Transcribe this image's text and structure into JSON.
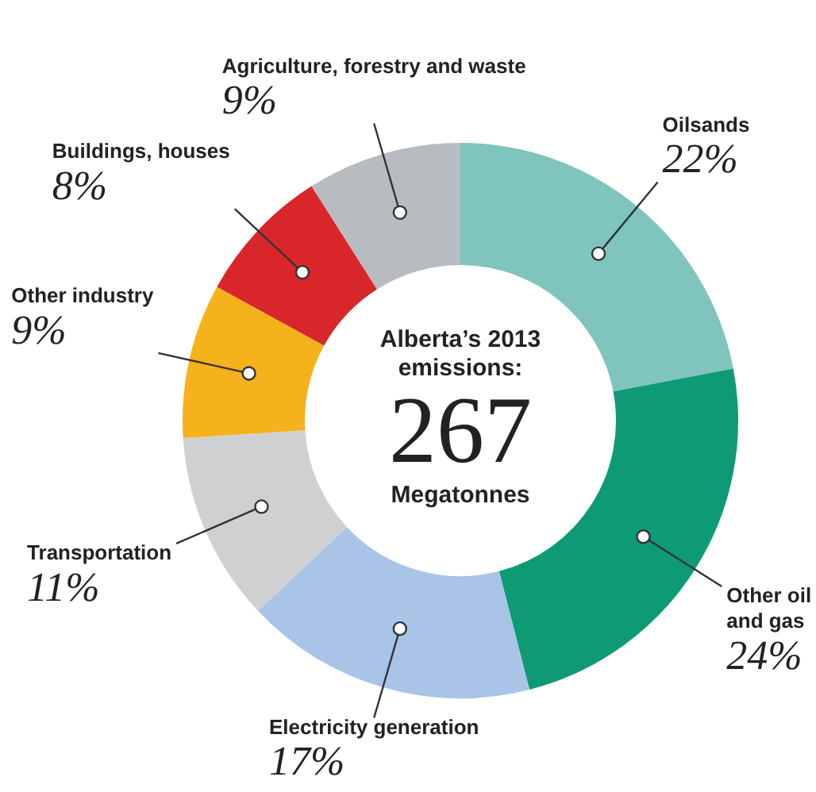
{
  "chart_data": {
    "type": "donut",
    "title": "Alberta’s 2013 emissions:",
    "annotations": [
      "267",
      "Megatonnes"
    ],
    "categories": [
      "Oilsands",
      "Other oil and gas",
      "Electricity generation",
      "Transportation",
      "Other industry",
      "Buildings, houses",
      "Agriculture, forestry and waste"
    ],
    "values": [
      22,
      24,
      17,
      11,
      9,
      8,
      9
    ],
    "value_labels": [
      "22%",
      "24%",
      "17%",
      "11%",
      "9%",
      "8%",
      "9%"
    ],
    "colors": [
      "#7fc4bd",
      "#0f9a76",
      "#a9c4e6",
      "#cfd0d2",
      "#f6b21a",
      "#d9262b",
      "#b8bcc1"
    ],
    "legend": false
  }
}
